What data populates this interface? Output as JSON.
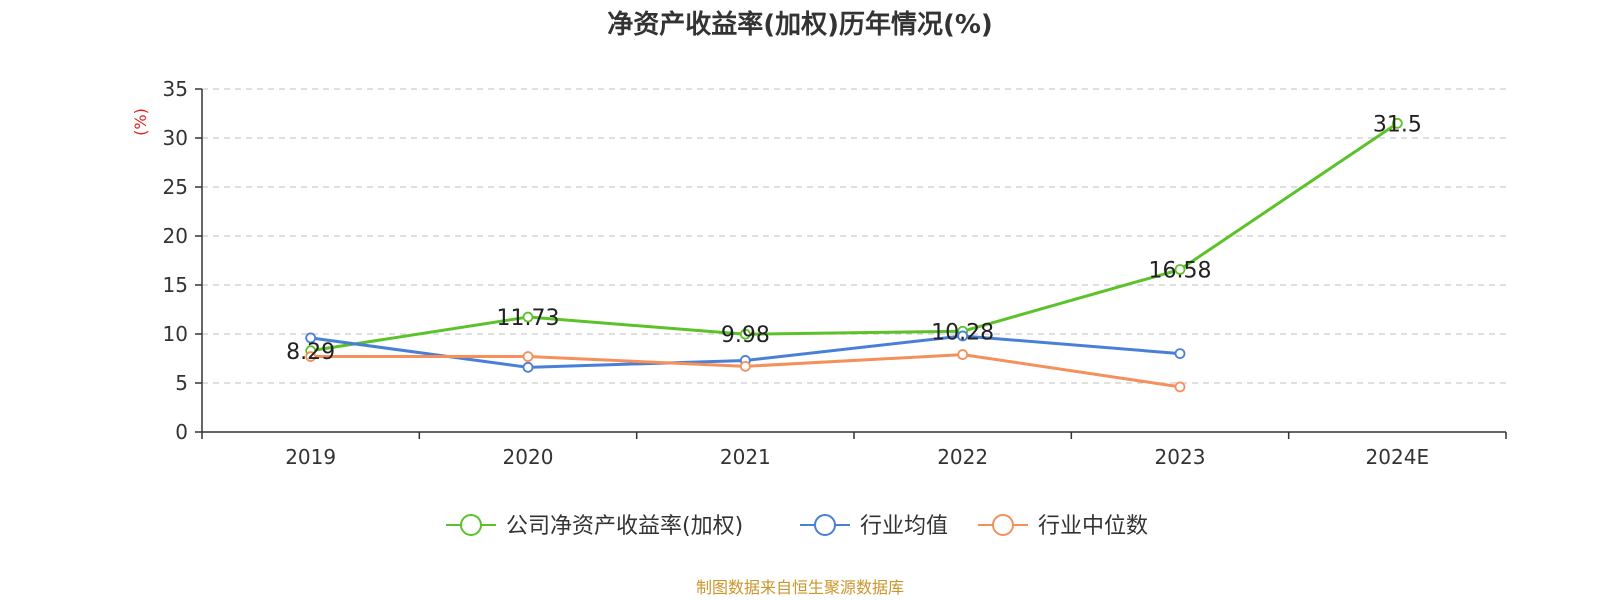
{
  "title": "净资产收益率(加权)历年情况(%)",
  "source": "制图数据来自恒生聚源数据库",
  "colors": {
    "grid": "#cccccc",
    "axis": "#333333",
    "ylabel": "#e02020",
    "source": "#c8962a"
  },
  "chart_data": {
    "type": "line",
    "categories": [
      "2019",
      "2020",
      "2021",
      "2022",
      "2023",
      "2024E"
    ],
    "ylabel": "(%)",
    "ylim": [
      0,
      35
    ],
    "yticks": [
      0,
      5,
      10,
      15,
      20,
      25,
      30,
      35
    ],
    "grid": true,
    "legend_position": "bottom",
    "series": [
      {
        "name": "公司净资产收益率(加权)",
        "color": "#5cc22a",
        "values": [
          8.29,
          11.73,
          9.98,
          10.28,
          16.58,
          31.5
        ],
        "labels": [
          "8.29",
          "11.73",
          "9.98",
          "10.28",
          "16.58",
          "31.5"
        ]
      },
      {
        "name": "行业均值",
        "color": "#4a7fd8",
        "values": [
          9.6,
          6.6,
          7.3,
          9.8,
          8.0,
          null
        ]
      },
      {
        "name": "行业中位数",
        "color": "#f5905a",
        "values": [
          7.7,
          7.7,
          6.7,
          7.9,
          4.6,
          null
        ]
      }
    ]
  }
}
